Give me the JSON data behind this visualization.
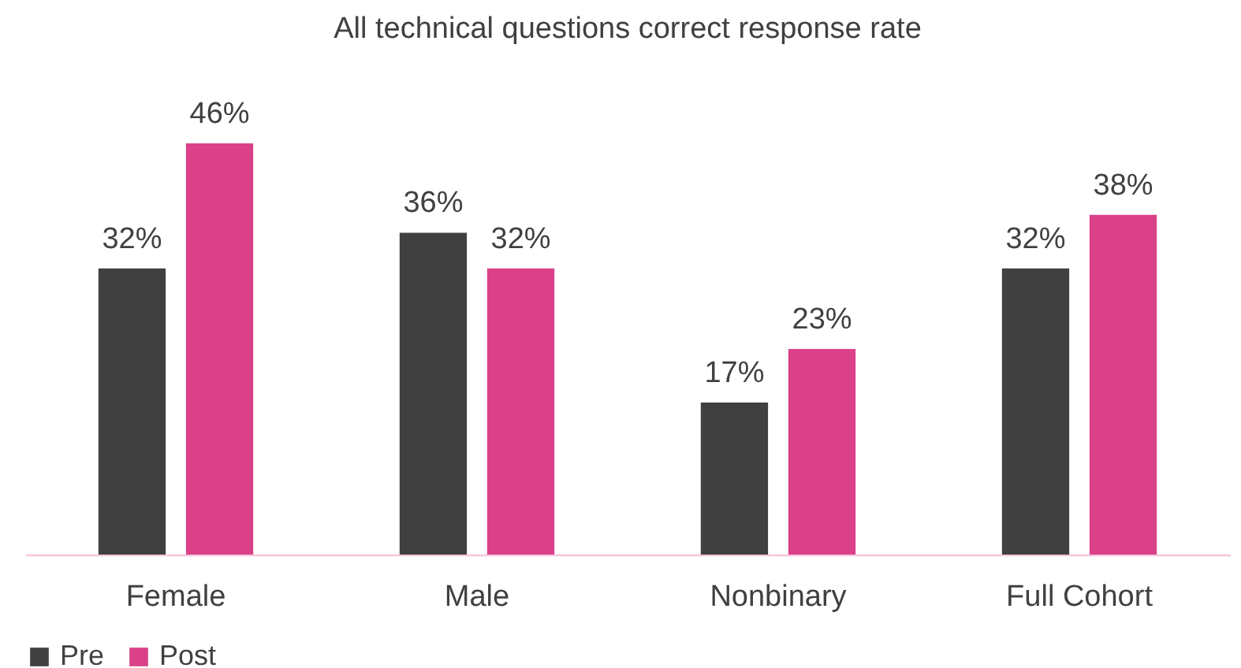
{
  "chart_data": {
    "type": "bar",
    "title": "All technical questions correct response rate",
    "categories": [
      "Female",
      "Male",
      "Nonbinary",
      "Full Cohort"
    ],
    "series": [
      {
        "name": "Pre",
        "color": "#404040",
        "values": [
          32,
          36,
          17,
          32
        ],
        "value_labels": [
          "32%",
          "36%",
          "17%",
          "32%"
        ]
      },
      {
        "name": "Post",
        "color": "#da4189",
        "values": [
          46,
          32,
          23,
          38
        ],
        "value_labels": [
          "46%",
          "32%",
          "23%",
          "38%"
        ]
      }
    ],
    "legend": "bottom left",
    "tick_labels": "x"
  }
}
